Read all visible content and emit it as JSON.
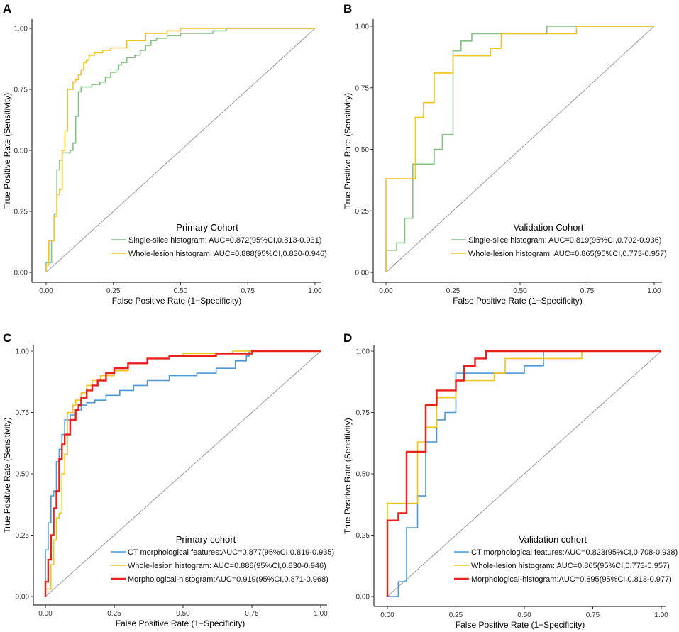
{
  "chart_data": [
    {
      "type": "line",
      "panel": "A",
      "title": "Primary Cohort",
      "xlabel": "False Positive Rate (1−Specificity)",
      "ylabel": "True Positive Rate (Sensitivity)",
      "xlim": [
        0,
        1
      ],
      "ylim": [
        0,
        1
      ],
      "xticks": [
        "0.00",
        "0.25",
        "0.50",
        "0.75",
        "1.00"
      ],
      "yticks": [
        "0.00",
        "0.25",
        "0.50",
        "0.75",
        "1.00"
      ],
      "legend_position": "bottom-right",
      "diagonal": true,
      "series": [
        {
          "name": "Single-slice histogram: AUC=0.872(95%CI,0.813-0.931)",
          "color": "#84c184",
          "width": 1.6,
          "x": [
            0,
            0,
            0.02,
            0.02,
            0.03,
            0.03,
            0.04,
            0.04,
            0.05,
            0.05,
            0.06,
            0.06,
            0.08,
            0.08,
            0.09,
            0.09,
            0.1,
            0.1,
            0.11,
            0.11,
            0.12,
            0.12,
            0.13,
            0.13,
            0.15,
            0.15,
            0.17,
            0.17,
            0.2,
            0.2,
            0.22,
            0.22,
            0.24,
            0.24,
            0.26,
            0.26,
            0.27,
            0.27,
            0.28,
            0.28,
            0.3,
            0.3,
            0.33,
            0.33,
            0.35,
            0.35,
            0.37,
            0.37,
            0.39,
            0.39,
            0.41,
            0.41,
            0.45,
            0.45,
            0.5,
            0.5,
            0.62,
            0.62,
            0.67,
            0.67,
            1
          ],
          "y": [
            0,
            0.04,
            0.04,
            0.13,
            0.13,
            0.24,
            0.24,
            0.42,
            0.42,
            0.46,
            0.46,
            0.49,
            0.49,
            0.49,
            0.49,
            0.5,
            0.5,
            0.53,
            0.53,
            0.64,
            0.64,
            0.74,
            0.74,
            0.76,
            0.76,
            0.76,
            0.76,
            0.77,
            0.77,
            0.78,
            0.78,
            0.8,
            0.8,
            0.82,
            0.82,
            0.83,
            0.83,
            0.85,
            0.85,
            0.86,
            0.86,
            0.88,
            0.88,
            0.89,
            0.89,
            0.91,
            0.91,
            0.93,
            0.93,
            0.95,
            0.95,
            0.96,
            0.96,
            0.97,
            0.97,
            0.98,
            0.98,
            0.99,
            0.99,
            1,
            1
          ]
        },
        {
          "name": "Whole-lesion histogram: AUC=0.888(95%CI,0.830-0.946)",
          "color": "#f2c31a",
          "width": 1.6,
          "x": [
            0,
            0,
            0.01,
            0.01,
            0.03,
            0.03,
            0.04,
            0.04,
            0.05,
            0.05,
            0.06,
            0.06,
            0.07,
            0.07,
            0.08,
            0.08,
            0.1,
            0.1,
            0.11,
            0.11,
            0.12,
            0.12,
            0.13,
            0.13,
            0.14,
            0.14,
            0.15,
            0.15,
            0.16,
            0.16,
            0.18,
            0.18,
            0.21,
            0.21,
            0.24,
            0.24,
            0.3,
            0.3,
            0.37,
            0.37,
            0.45,
            0.45,
            0.5,
            0.5,
            1
          ],
          "y": [
            0,
            0.03,
            0.03,
            0.13,
            0.13,
            0.23,
            0.23,
            0.32,
            0.32,
            0.34,
            0.34,
            0.5,
            0.5,
            0.58,
            0.58,
            0.75,
            0.75,
            0.78,
            0.78,
            0.79,
            0.79,
            0.81,
            0.81,
            0.83,
            0.83,
            0.86,
            0.86,
            0.87,
            0.87,
            0.89,
            0.89,
            0.9,
            0.9,
            0.91,
            0.91,
            0.92,
            0.92,
            0.95,
            0.95,
            0.98,
            0.98,
            0.99,
            0.99,
            1,
            1
          ]
        }
      ]
    },
    {
      "type": "line",
      "panel": "B",
      "title": "Validation Cohort",
      "xlabel": "False Positive Rate (1−Specificity)",
      "ylabel": "True Positive Rate (Sensitivity)",
      "xlim": [
        0,
        1
      ],
      "ylim": [
        0,
        1
      ],
      "xticks": [
        "0.00",
        "0.25",
        "0.50",
        "0.75",
        "1.00"
      ],
      "yticks": [
        "0.00",
        "0.25",
        "0.50",
        "0.75",
        "1.00"
      ],
      "legend_position": "bottom-right",
      "diagonal": true,
      "series": [
        {
          "name": "Single-slice histogram: AUC=0.819(95%CI,0.702-0.936)",
          "color": "#84c184",
          "width": 1.6,
          "x": [
            0,
            0,
            0.04,
            0.04,
            0.07,
            0.07,
            0.1,
            0.1,
            0.18,
            0.18,
            0.21,
            0.21,
            0.25,
            0.25,
            0.28,
            0.28,
            0.32,
            0.32,
            0.43,
            0.43,
            0.6,
            0.6,
            1
          ],
          "y": [
            0,
            0.09,
            0.09,
            0.12,
            0.12,
            0.22,
            0.22,
            0.44,
            0.44,
            0.5,
            0.5,
            0.56,
            0.56,
            0.9,
            0.9,
            0.94,
            0.94,
            0.97,
            0.97,
            0.97,
            0.97,
            1,
            1
          ]
        },
        {
          "name": "Whole-lesion histogram: AUC=0.865(95%CI,0.773-0.957)",
          "color": "#f2c31a",
          "width": 1.6,
          "x": [
            0,
            0,
            0.11,
            0.11,
            0.14,
            0.14,
            0.18,
            0.18,
            0.21,
            0.21,
            0.25,
            0.25,
            0.39,
            0.39,
            0.43,
            0.43,
            0.71,
            0.71,
            1
          ],
          "y": [
            0,
            0.38,
            0.38,
            0.63,
            0.63,
            0.69,
            0.69,
            0.81,
            0.81,
            0.81,
            0.81,
            0.88,
            0.88,
            0.91,
            0.91,
            0.97,
            0.97,
            1,
            1
          ]
        }
      ]
    },
    {
      "type": "line",
      "panel": "C",
      "title": "Primary cohort",
      "xlabel": "False Positive Rate (1−Specificity)",
      "ylabel": "True Positive Rate (Sensitivity)",
      "xlim": [
        0,
        1
      ],
      "ylim": [
        0,
        1
      ],
      "xticks": [
        "0.00",
        "0.25",
        "0.50",
        "0.75",
        "1.00"
      ],
      "yticks": [
        "0.00",
        "0.25",
        "0.50",
        "0.75",
        "1.00"
      ],
      "legend_position": "bottom-right",
      "diagonal": true,
      "series": [
        {
          "name": "CT morphological features:AUC=0.877(95%CI,0.819-0.935)",
          "color": "#4d97d4",
          "width": 1.6,
          "x": [
            0,
            0,
            0.01,
            0.01,
            0.02,
            0.02,
            0.03,
            0.03,
            0.04,
            0.04,
            0.05,
            0.05,
            0.06,
            0.06,
            0.07,
            0.07,
            0.09,
            0.09,
            0.11,
            0.11,
            0.13,
            0.13,
            0.15,
            0.15,
            0.18,
            0.18,
            0.22,
            0.22,
            0.27,
            0.27,
            0.32,
            0.32,
            0.37,
            0.37,
            0.45,
            0.45,
            0.55,
            0.55,
            0.62,
            0.62,
            0.69,
            0.69,
            0.73,
            0.73,
            0.74,
            0.74,
            1
          ],
          "y": [
            0,
            0.19,
            0.19,
            0.3,
            0.3,
            0.41,
            0.41,
            0.43,
            0.43,
            0.55,
            0.55,
            0.6,
            0.6,
            0.66,
            0.66,
            0.72,
            0.72,
            0.74,
            0.74,
            0.76,
            0.76,
            0.78,
            0.78,
            0.79,
            0.79,
            0.8,
            0.8,
            0.82,
            0.82,
            0.84,
            0.84,
            0.86,
            0.86,
            0.88,
            0.88,
            0.9,
            0.9,
            0.91,
            0.91,
            0.93,
            0.93,
            0.96,
            0.96,
            0.98,
            0.98,
            1,
            1
          ]
        },
        {
          "name": "Whole-lesion histogram: AUC=0.888(95%CI,0.830-0.946)",
          "color": "#f2c31a",
          "width": 1.6,
          "x": [
            0,
            0,
            0.02,
            0.02,
            0.03,
            0.03,
            0.04,
            0.04,
            0.05,
            0.05,
            0.06,
            0.06,
            0.07,
            0.07,
            0.08,
            0.08,
            0.1,
            0.1,
            0.11,
            0.11,
            0.13,
            0.13,
            0.15,
            0.15,
            0.17,
            0.17,
            0.2,
            0.2,
            0.25,
            0.25,
            0.3,
            0.3,
            0.37,
            0.37,
            0.45,
            0.45,
            0.5,
            0.5,
            0.68,
            0.68,
            1
          ],
          "y": [
            0,
            0.03,
            0.03,
            0.13,
            0.13,
            0.23,
            0.23,
            0.32,
            0.32,
            0.34,
            0.34,
            0.5,
            0.5,
            0.58,
            0.58,
            0.75,
            0.75,
            0.78,
            0.78,
            0.8,
            0.8,
            0.83,
            0.83,
            0.86,
            0.86,
            0.88,
            0.88,
            0.9,
            0.9,
            0.92,
            0.92,
            0.95,
            0.95,
            0.97,
            0.97,
            0.98,
            0.98,
            0.99,
            0.99,
            1,
            1
          ]
        },
        {
          "name": "Morphological-histogram:AUC=0.919(95%CI,0.871-0.968)",
          "color": "#e8221b",
          "width": 2.4,
          "x": [
            0,
            0,
            0.01,
            0.01,
            0.02,
            0.02,
            0.03,
            0.03,
            0.04,
            0.04,
            0.05,
            0.05,
            0.06,
            0.06,
            0.07,
            0.07,
            0.09,
            0.09,
            0.11,
            0.11,
            0.12,
            0.12,
            0.13,
            0.13,
            0.15,
            0.15,
            0.17,
            0.17,
            0.19,
            0.19,
            0.22,
            0.22,
            0.25,
            0.25,
            0.3,
            0.3,
            0.37,
            0.37,
            0.45,
            0.45,
            0.55,
            0.55,
            0.62,
            0.62,
            0.69,
            0.69,
            0.75,
            0.75,
            1
          ],
          "y": [
            0,
            0.06,
            0.06,
            0.15,
            0.15,
            0.25,
            0.25,
            0.36,
            0.36,
            0.43,
            0.43,
            0.56,
            0.56,
            0.62,
            0.62,
            0.66,
            0.66,
            0.72,
            0.72,
            0.76,
            0.76,
            0.78,
            0.78,
            0.81,
            0.81,
            0.84,
            0.84,
            0.86,
            0.86,
            0.88,
            0.88,
            0.91,
            0.91,
            0.93,
            0.93,
            0.95,
            0.95,
            0.97,
            0.97,
            0.98,
            0.98,
            0.98,
            0.98,
            0.99,
            0.99,
            0.99,
            0.99,
            1,
            1
          ]
        }
      ]
    },
    {
      "type": "line",
      "panel": "D",
      "title": "Validation cohort",
      "xlabel": "False Positive Rate (1−Specificity)",
      "ylabel": "True Positive Rate (Sensitivity)",
      "xlim": [
        0,
        1
      ],
      "ylim": [
        0,
        1
      ],
      "xticks": [
        "0.00",
        "0.25",
        "0.50",
        "0.75",
        "1.00"
      ],
      "yticks": [
        "0.00",
        "0.25",
        "0.50",
        "0.75",
        "1.00"
      ],
      "legend_position": "bottom-right",
      "diagonal": true,
      "series": [
        {
          "name": "CT morphological features:AUC=0.823(95%CI,0.708-0.938)",
          "color": "#4d97d4",
          "width": 1.6,
          "x": [
            0,
            0.04,
            0.04,
            0.07,
            0.07,
            0.11,
            0.11,
            0.14,
            0.14,
            0.18,
            0.18,
            0.21,
            0.21,
            0.25,
            0.25,
            0.46,
            0.46,
            0.5,
            0.5,
            0.57,
            0.57,
            1
          ],
          "y": [
            0,
            0,
            0.06,
            0.06,
            0.28,
            0.28,
            0.41,
            0.41,
            0.63,
            0.63,
            0.72,
            0.72,
            0.75,
            0.75,
            0.91,
            0.91,
            0.91,
            0.91,
            0.94,
            0.94,
            1,
            1
          ]
        },
        {
          "name": "Whole-lesion histogram: AUC=0.865(95%CI,0.773-0.957)",
          "color": "#f2c31a",
          "width": 1.6,
          "x": [
            0,
            0,
            0.11,
            0.11,
            0.14,
            0.14,
            0.18,
            0.18,
            0.21,
            0.21,
            0.25,
            0.25,
            0.39,
            0.39,
            0.43,
            0.43,
            0.71,
            0.71,
            1
          ],
          "y": [
            0,
            0.38,
            0.38,
            0.63,
            0.63,
            0.69,
            0.69,
            0.81,
            0.81,
            0.81,
            0.81,
            0.88,
            0.88,
            0.91,
            0.91,
            0.97,
            0.97,
            1,
            1
          ]
        },
        {
          "name": "Morphological-histogram:AUC=0.895(95%CI,0.813-0.977)",
          "color": "#e8221b",
          "width": 2.4,
          "x": [
            0,
            0,
            0.04,
            0.04,
            0.07,
            0.07,
            0.14,
            0.14,
            0.18,
            0.18,
            0.25,
            0.25,
            0.28,
            0.28,
            0.32,
            0.32,
            0.36,
            0.36,
            1
          ],
          "y": [
            0,
            0.31,
            0.31,
            0.34,
            0.34,
            0.59,
            0.59,
            0.78,
            0.78,
            0.84,
            0.84,
            0.88,
            0.88,
            0.94,
            0.94,
            0.97,
            0.97,
            1,
            1
          ]
        }
      ]
    }
  ]
}
